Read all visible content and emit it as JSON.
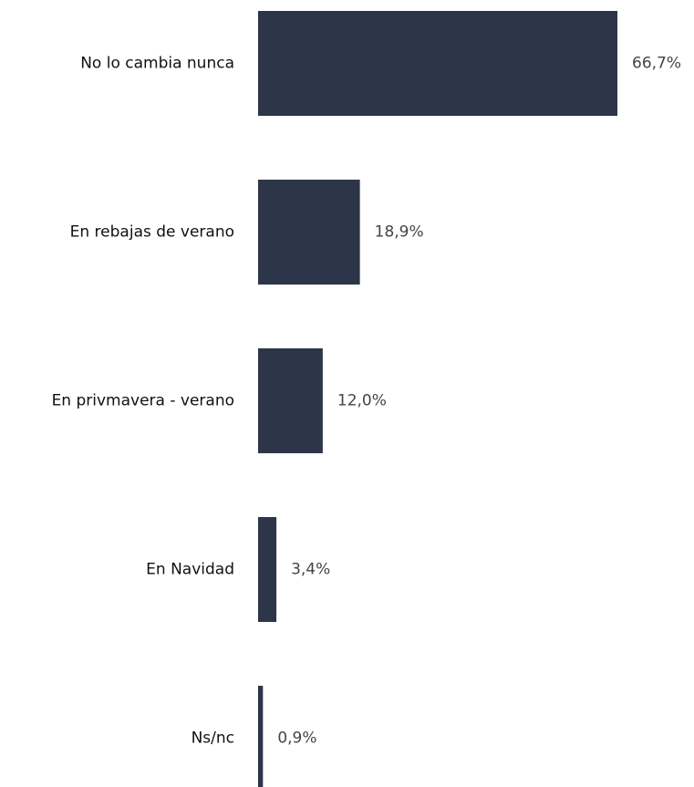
{
  "chart_data": {
    "type": "barh",
    "categories": [
      "No lo cambia nunca",
      "En rebajas de verano",
      "En privmavera - verano",
      "En Navidad",
      "Ns/nc"
    ],
    "values": [
      66.7,
      18.9,
      12.0,
      3.4,
      0.9
    ],
    "value_labels": [
      "66,7%",
      "18,9%",
      "12,0%",
      "3,4%",
      "0,9%"
    ],
    "color": "#2d3548"
  }
}
